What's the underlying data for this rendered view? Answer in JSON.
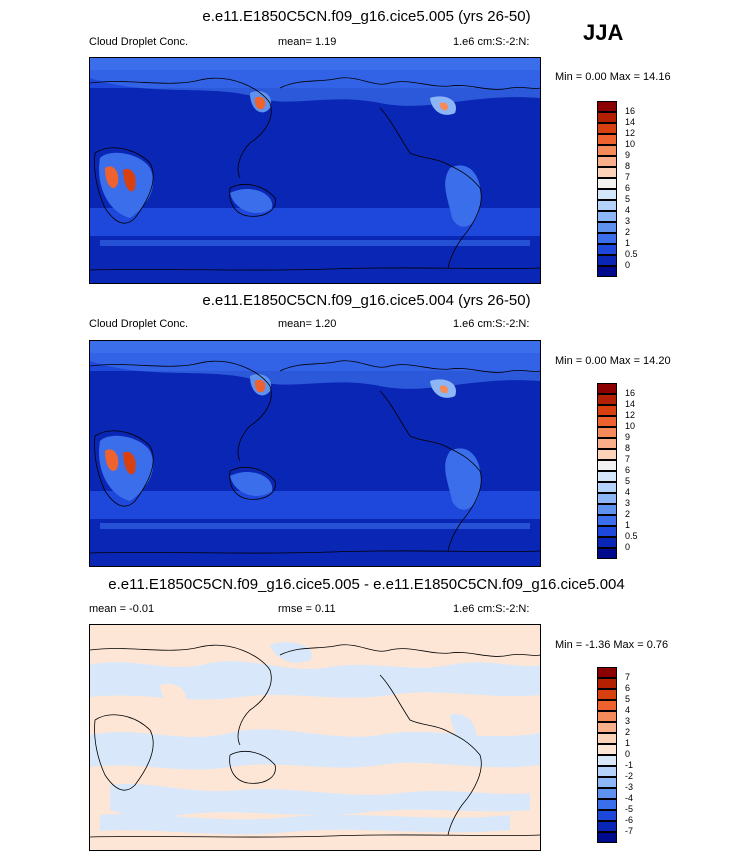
{
  "season": "JJA",
  "panels": [
    {
      "title": "e.e11.E1850C5CN.f09_g16.cice5.005 (yrs 26-50)",
      "left_label": "Cloud Droplet Conc.",
      "center_label": "mean=   1.19",
      "right_label": "1.e6 cm:S:-2:N:",
      "minmax": "Min =   0.00 Max =  14.16",
      "colorbar": {
        "labels": [
          "16",
          "14",
          "12",
          "10",
          "9",
          "8",
          "7",
          "6",
          "5",
          "4",
          "3",
          "2",
          "1",
          "0.5",
          "0"
        ],
        "colors": [
          "#8b0000",
          "#b22000",
          "#d84010",
          "#ee6230",
          "#f58a5a",
          "#f9b08a",
          "#fcd2b8",
          "#f4f2f0",
          "#d4e6fa",
          "#b4d2fa",
          "#8cb6f6",
          "#5e92ee",
          "#3a6eea",
          "#1e48dc",
          "#0a26b4",
          "#000a8c"
        ]
      }
    },
    {
      "title": "e.e11.E1850C5CN.f09_g16.cice5.004 (yrs 26-50)",
      "left_label": "Cloud Droplet Conc.",
      "center_label": "mean=   1.20",
      "right_label": "1.e6 cm:S:-2:N:",
      "minmax": "Min =   0.00 Max =  14.20",
      "colorbar": {
        "labels": [
          "16",
          "14",
          "12",
          "10",
          "9",
          "8",
          "7",
          "6",
          "5",
          "4",
          "3",
          "2",
          "1",
          "0.5",
          "0"
        ],
        "colors": [
          "#8b0000",
          "#b22000",
          "#d84010",
          "#ee6230",
          "#f58a5a",
          "#f9b08a",
          "#fcd2b8",
          "#f4f2f0",
          "#d4e6fa",
          "#b4d2fa",
          "#8cb6f6",
          "#5e92ee",
          "#3a6eea",
          "#1e48dc",
          "#0a26b4",
          "#000a8c"
        ]
      }
    },
    {
      "title": "e.e11.E1850C5CN.f09_g16.cice5.005 - e.e11.E1850C5CN.f09_g16.cice5.004",
      "left_label": "mean =  -0.01",
      "center_label": "rmse =   0.11",
      "right_label": "1.e6 cm:S:-2:N:",
      "minmax": "Min =  -1.36 Max =   0.76",
      "colorbar": {
        "labels": [
          "7",
          "6",
          "5",
          "4",
          "3",
          "2",
          "1",
          "0",
          "-1",
          "-2",
          "-3",
          "-4",
          "-5",
          "-6",
          "-7"
        ],
        "colors": [
          "#8b0000",
          "#b22000",
          "#d84010",
          "#ee6230",
          "#f58a5a",
          "#f9b08a",
          "#fcd2b8",
          "#fde6d6",
          "#d8e8fa",
          "#b4d2fa",
          "#8cb6f6",
          "#5e92ee",
          "#3a6eea",
          "#1e48dc",
          "#0a26b4",
          "#000a8c"
        ]
      }
    }
  ]
}
